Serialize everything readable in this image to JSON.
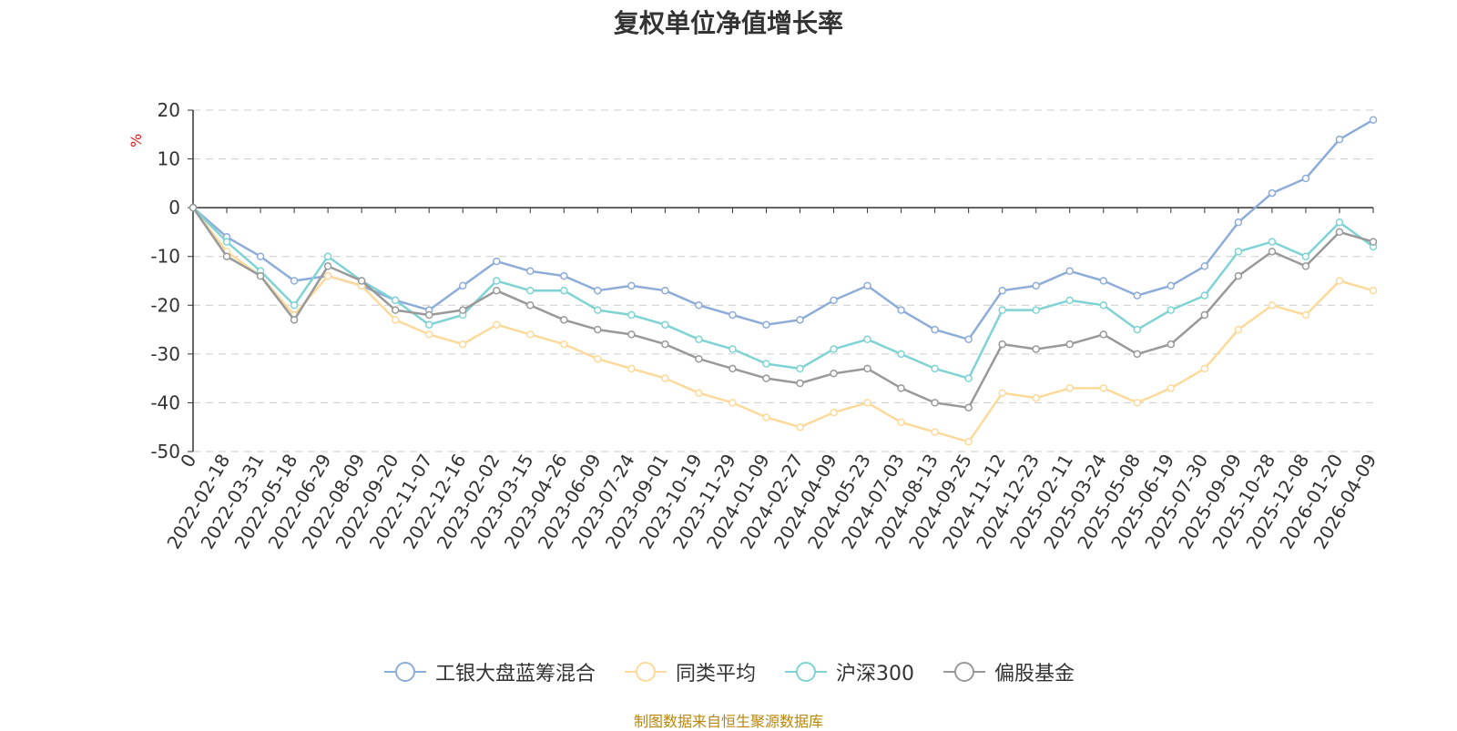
{
  "chart_data": {
    "type": "line",
    "title": "复权单位净值增长率",
    "ylabel": "%",
    "ylim": [
      -50,
      20
    ],
    "yticks": [
      20,
      10,
      0,
      -10,
      -20,
      -30,
      -40,
      -50
    ],
    "grid": true,
    "legend_position": "bottom",
    "x": [
      "0",
      "2022-02-18",
      "2022-03-31",
      "2022-05-18",
      "2022-06-29",
      "2022-08-09",
      "2022-09-20",
      "2022-11-07",
      "2022-12-16",
      "2023-02-02",
      "2023-03-15",
      "2023-04-26",
      "2023-06-09",
      "2023-07-24",
      "2023-09-01",
      "2023-10-19",
      "2023-11-29",
      "2024-01-09",
      "2024-02-27",
      "2024-04-09",
      "2024-05-23",
      "2024-07-03",
      "2024-08-13",
      "2024-09-25",
      "2024-11-12",
      "2024-12-23",
      "2025-02-11",
      "2025-03-24",
      "2025-05-08",
      "2025-06-19",
      "2025-07-30",
      "2025-09-09",
      "2025-10-28",
      "2025-12-08",
      "2026-01-20",
      "2026-04-09"
    ],
    "series": [
      {
        "name": "工银大盘蓝筹混合",
        "color": "#8eacd8",
        "values": [
          0,
          -6,
          -10,
          -15,
          -14,
          -16,
          -19,
          -21,
          -16,
          -11,
          -13,
          -14,
          -17,
          -16,
          -17,
          -20,
          -22,
          -24,
          -23,
          -19,
          -16,
          -21,
          -25,
          -27,
          -17,
          -16,
          -13,
          -15,
          -18,
          -16,
          -12,
          -3,
          3,
          6,
          14,
          18
        ]
      },
      {
        "name": "同类平均",
        "color": "#fdd99a",
        "values": [
          0,
          -9,
          -14,
          -22,
          -14,
          -16,
          -23,
          -26,
          -28,
          -24,
          -26,
          -28,
          -31,
          -33,
          -35,
          -38,
          -40,
          -43,
          -45,
          -42,
          -40,
          -44,
          -46,
          -48,
          -38,
          -39,
          -37,
          -37,
          -40,
          -37,
          -33,
          -25,
          -20,
          -22,
          -15,
          -17
        ]
      },
      {
        "name": "沪深300",
        "color": "#7fd3d4",
        "values": [
          0,
          -7,
          -13,
          -20,
          -10,
          -15,
          -19,
          -24,
          -22,
          -15,
          -17,
          -17,
          -21,
          -22,
          -24,
          -27,
          -29,
          -32,
          -33,
          -29,
          -27,
          -30,
          -33,
          -35,
          -21,
          -21,
          -19,
          -20,
          -25,
          -21,
          -18,
          -9,
          -7,
          -10,
          -3,
          -8
        ]
      },
      {
        "name": "偏股基金",
        "color": "#999999",
        "values": [
          0,
          -10,
          -14,
          -23,
          -12,
          -15,
          -21,
          -22,
          -21,
          -17,
          -20,
          -23,
          -25,
          -26,
          -28,
          -31,
          -33,
          -35,
          -36,
          -34,
          -33,
          -37,
          -40,
          -41,
          -28,
          -29,
          -28,
          -26,
          -30,
          -28,
          -22,
          -14,
          -9,
          -12,
          -5,
          -7
        ]
      }
    ]
  },
  "legend": [
    "工银大盘蓝筹混合",
    "同类平均",
    "沪深300",
    "偏股基金"
  ],
  "source": "制图数据来自恒生聚源数据库"
}
